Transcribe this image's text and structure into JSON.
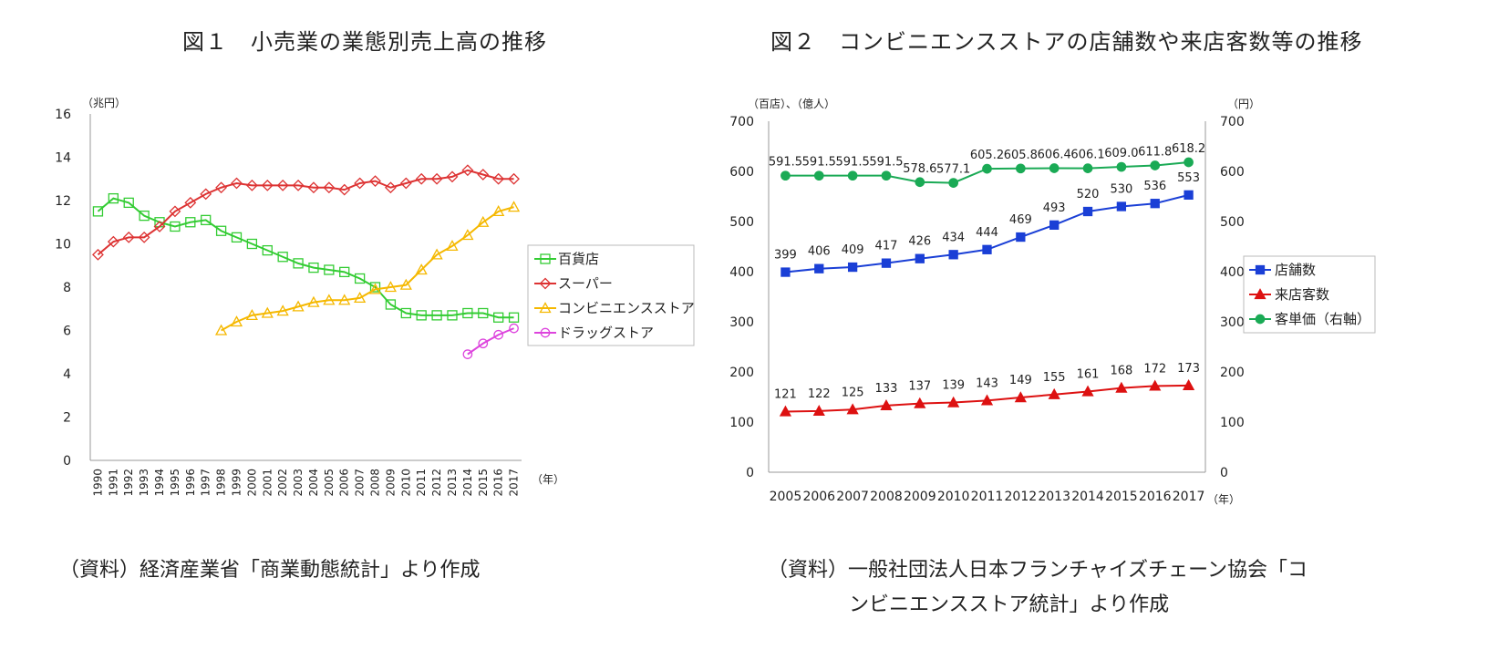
{
  "figure1": {
    "title": "図１　小売業の業態別売上高の推移",
    "source": "（資料）経済産業省「商業動態統計」より作成"
  },
  "figure2": {
    "title": "図２　コンビニエンスストアの店舗数や来店客数等の推移",
    "source_line1": "（資料）一般社団法人日本フランチャイズチェーン協会「コ",
    "source_line2": "ンビニエンスストア統計」より作成"
  },
  "chart_data": [
    {
      "type": "line",
      "ylabel": "（兆円）",
      "xlabel": "（年）",
      "ylim": [
        0,
        16
      ],
      "yticks": [
        0,
        2,
        4,
        6,
        8,
        10,
        12,
        14,
        16
      ],
      "x": [
        1990,
        1991,
        1992,
        1993,
        1994,
        1995,
        1996,
        1997,
        1998,
        1999,
        2000,
        2001,
        2002,
        2003,
        2004,
        2005,
        2006,
        2007,
        2008,
        2009,
        2010,
        2011,
        2012,
        2013,
        2014,
        2015,
        2016,
        2017
      ],
      "legend_position": "right",
      "series": [
        {
          "name": "百貨店",
          "color": "#33cc33",
          "marker": "square",
          "values": [
            11.5,
            12.1,
            11.9,
            11.3,
            11.0,
            10.8,
            11.0,
            11.1,
            10.6,
            10.3,
            10.0,
            9.7,
            9.4,
            9.1,
            8.9,
            8.8,
            8.7,
            8.4,
            8.0,
            7.2,
            6.8,
            6.7,
            6.7,
            6.7,
            6.8,
            6.8,
            6.6,
            6.6
          ]
        },
        {
          "name": "スーパー",
          "color": "#dd3333",
          "marker": "diamond",
          "values": [
            9.5,
            10.1,
            10.3,
            10.3,
            10.8,
            11.5,
            11.9,
            12.3,
            12.6,
            12.8,
            12.7,
            12.7,
            12.7,
            12.7,
            12.6,
            12.6,
            12.5,
            12.8,
            12.9,
            12.6,
            12.8,
            13.0,
            13.0,
            13.1,
            13.4,
            13.2,
            13.0,
            13.0
          ]
        },
        {
          "name": "コンビニエンスストア",
          "color": "#f5b800",
          "marker": "triangle",
          "values": [
            null,
            null,
            null,
            null,
            null,
            null,
            null,
            null,
            6.0,
            6.4,
            6.7,
            6.8,
            6.9,
            7.1,
            7.3,
            7.4,
            7.4,
            7.5,
            7.9,
            8.0,
            8.1,
            8.8,
            9.5,
            9.9,
            10.4,
            11.0,
            11.5,
            11.7
          ]
        },
        {
          "name": "ドラッグストア",
          "color": "#dd44dd",
          "marker": "circle",
          "values": [
            null,
            null,
            null,
            null,
            null,
            null,
            null,
            null,
            null,
            null,
            null,
            null,
            null,
            null,
            null,
            null,
            null,
            null,
            null,
            null,
            null,
            null,
            null,
            null,
            4.9,
            5.4,
            5.8,
            6.1
          ]
        }
      ]
    },
    {
      "type": "line",
      "ylabel": "（百店）、（億人）",
      "y2label": "（円）",
      "xlabel": "（年）",
      "ylim": [
        0,
        700
      ],
      "y2lim": [
        0,
        700
      ],
      "yticks": [
        0,
        100,
        200,
        300,
        400,
        500,
        600,
        700
      ],
      "x": [
        2005,
        2006,
        2007,
        2008,
        2009,
        2010,
        2011,
        2012,
        2013,
        2014,
        2015,
        2016,
        2017
      ],
      "legend_position": "right",
      "series": [
        {
          "name": "店舗数",
          "color": "#1a3fd6",
          "marker": "square",
          "values": [
            399,
            406,
            409,
            417,
            426,
            434,
            444,
            469,
            493,
            520,
            530,
            536,
            553
          ],
          "labels": [
            "399",
            "406",
            "409",
            "417",
            "426",
            "434",
            "444",
            "469",
            "493",
            "520",
            "530",
            "536",
            "553"
          ]
        },
        {
          "name": "来店客数",
          "color": "#dd1111",
          "marker": "triangle",
          "values": [
            121,
            122,
            125,
            133,
            137,
            139,
            143,
            149,
            155,
            161,
            168,
            172,
            173
          ],
          "labels": [
            "121",
            "122",
            "125",
            "133",
            "137",
            "139",
            "143",
            "149",
            "155",
            "161",
            "168",
            "172",
            "173"
          ]
        },
        {
          "name": "客単価（右軸）",
          "color": "#1aaa55",
          "marker": "circle",
          "values": [
            591.5,
            591.5,
            591.5,
            591.5,
            578.6,
            577.1,
            605.2,
            605.8,
            606.4,
            606.1,
            609.0,
            611.8,
            618.2
          ],
          "labels": [
            "591.5",
            "591.5",
            "591.5",
            "591.5",
            "578.6",
            "577.1",
            "605.2",
            "605.8",
            "606.4",
            "606.1",
            "609.0",
            "611.8",
            "618.2"
          ]
        }
      ]
    }
  ]
}
